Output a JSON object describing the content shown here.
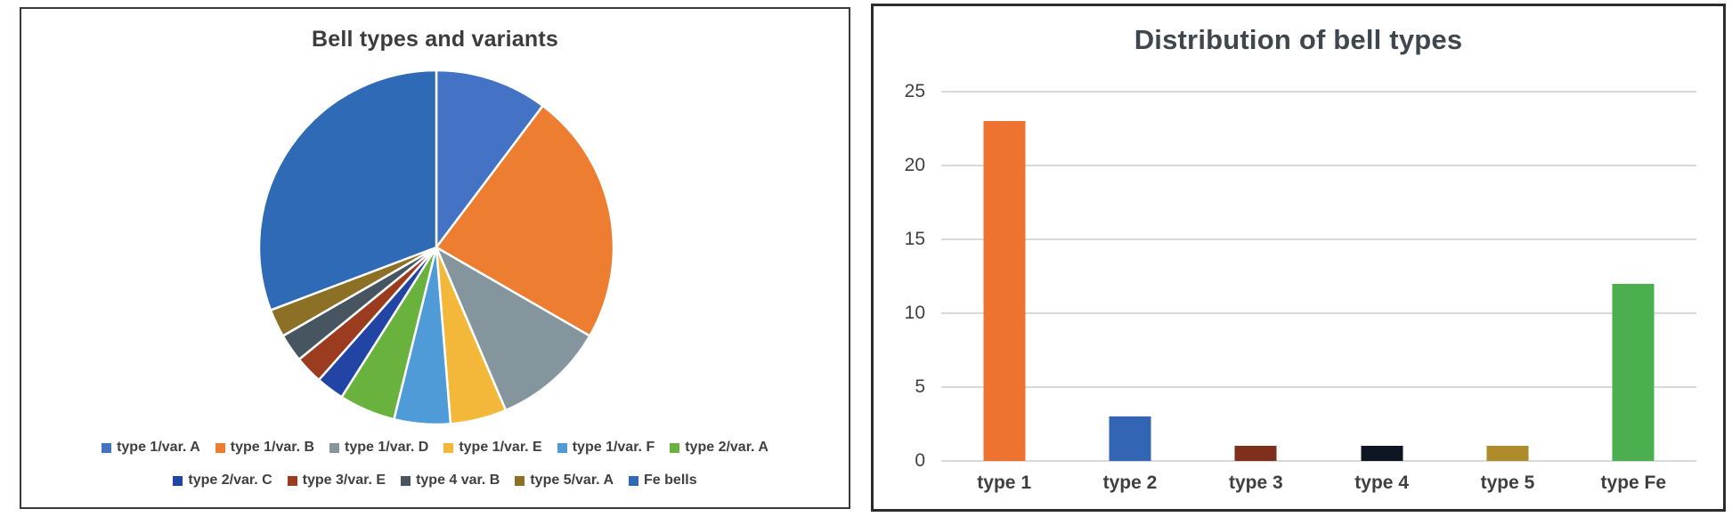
{
  "chart_data": [
    {
      "type": "pie",
      "title": "Bell types and variants",
      "legend_position": "bottom",
      "start_angle_deg": 0,
      "direction": "clockwise",
      "total": 39,
      "slices": [
        {
          "label": "type 1/var. A",
          "value": 4,
          "color": "#4472c4"
        },
        {
          "label": "type 1/var. B",
          "value": 9,
          "color": "#ed7d31"
        },
        {
          "label": "type 1/var. D",
          "value": 4,
          "color": "#84959e"
        },
        {
          "label": "type 1/var. E",
          "value": 2,
          "color": "#f3b73a"
        },
        {
          "label": "type 1/var. F",
          "value": 2,
          "color": "#4f9bd8"
        },
        {
          "label": "type 2/var. A",
          "value": 2,
          "color": "#69b23d"
        },
        {
          "label": "type 2/var. C",
          "value": 1,
          "color": "#2245a5"
        },
        {
          "label": "type 3/var. E",
          "value": 1,
          "color": "#9b3b1f"
        },
        {
          "label": "type 4 var. B",
          "value": 1,
          "color": "#465560"
        },
        {
          "label": "type 5/var. A",
          "value": 1,
          "color": "#8c7026"
        },
        {
          "label": "Fe bells",
          "value": 12,
          "color": "#2e6ab5"
        }
      ],
      "legend_rows": [
        [
          0,
          1,
          2,
          3,
          4,
          5
        ],
        [
          6,
          7,
          8,
          9,
          10
        ]
      ]
    },
    {
      "type": "bar",
      "title": "Distribution of bell types",
      "categories": [
        "type 1",
        "type 2",
        "type 3",
        "type 4",
        "type 5",
        "type Fe"
      ],
      "values": [
        23,
        3,
        1,
        1,
        1,
        12
      ],
      "colors": [
        "#ee7330",
        "#3465b4",
        "#7e301c",
        "#0e1624",
        "#ae8c2c",
        "#4bae4f"
      ],
      "xlabel": "",
      "ylabel": "",
      "ylim": [
        0,
        25
      ],
      "yticks": [
        0,
        5,
        10,
        15,
        20,
        25
      ],
      "grid": true,
      "gridline_color": "#d9d9d9"
    }
  ]
}
